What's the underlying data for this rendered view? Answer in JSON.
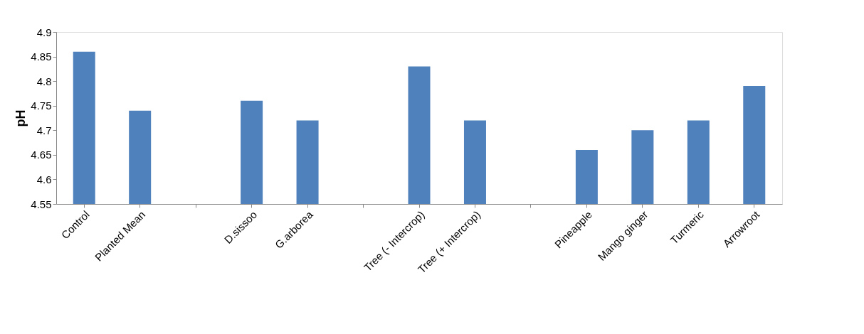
{
  "chart_data": {
    "type": "bar",
    "ylabel": "pH",
    "categories": [
      "Control",
      "Planted Mean",
      null,
      "D.sissoo",
      "G.arborea",
      null,
      "Tree (- Intercrop)",
      "Tree (+ Intercrop)",
      null,
      "Pineapple",
      "Mango ginger",
      "Turmeric",
      "Arrowroot"
    ],
    "values": [
      4.86,
      4.74,
      null,
      4.76,
      4.72,
      null,
      4.83,
      4.72,
      null,
      4.66,
      4.7,
      4.72,
      4.79
    ],
    "color": "#4f81bd",
    "ylim": [
      4.55,
      4.9
    ],
    "yticks": [
      4.55,
      4.6,
      4.65,
      4.7,
      4.75,
      4.8,
      4.85,
      4.9
    ],
    "grid": false
  }
}
